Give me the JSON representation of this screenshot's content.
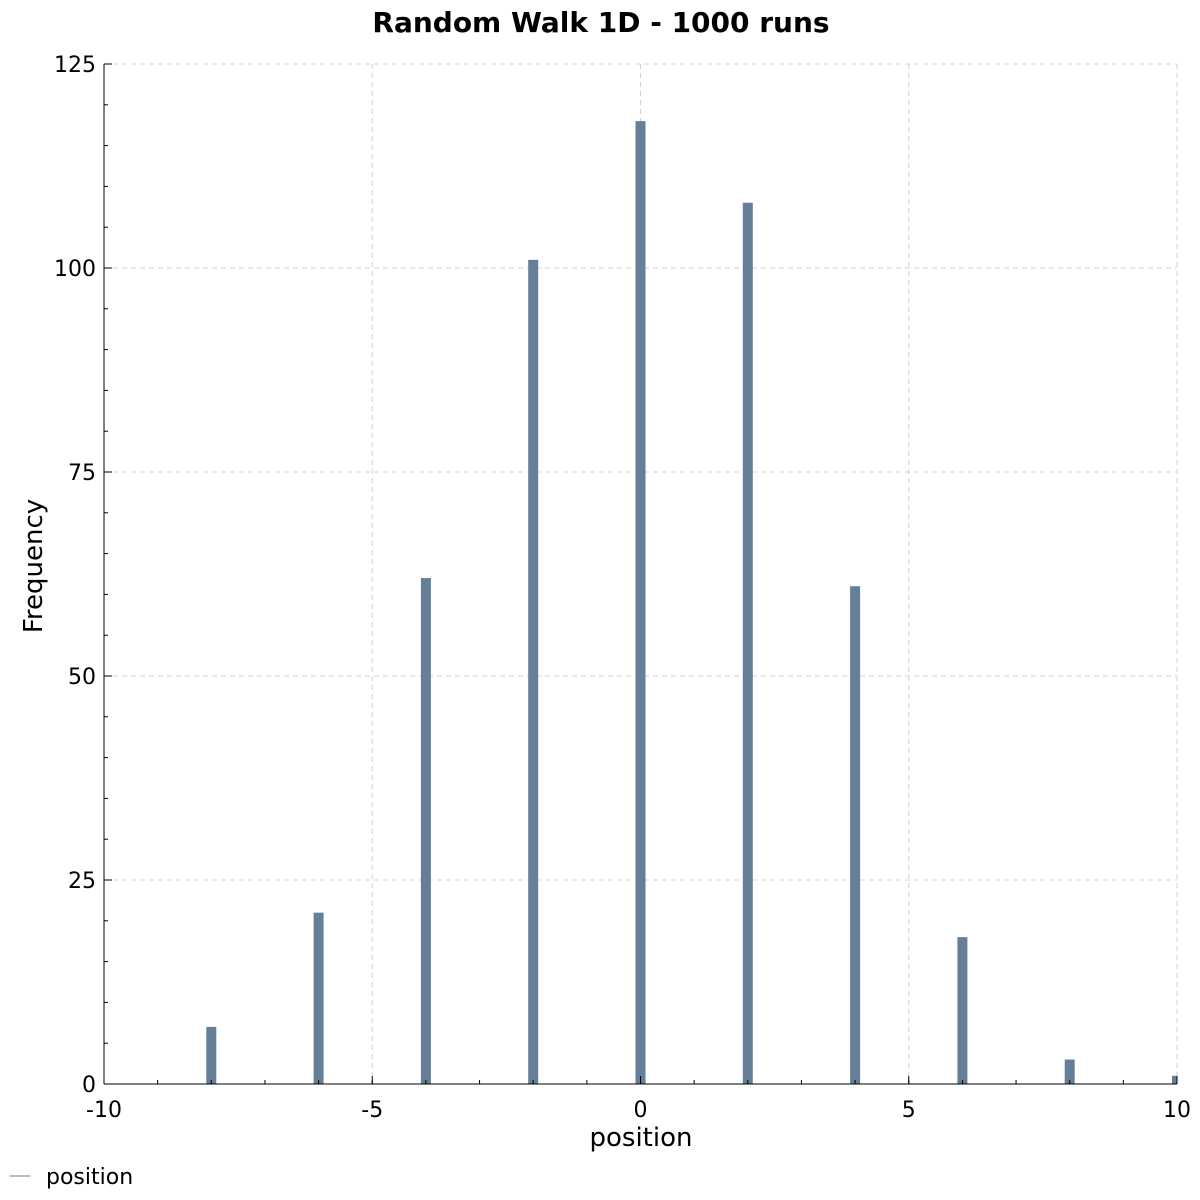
{
  "chart_data": {
    "type": "bar",
    "title": "Random Walk 1D - 1000 runs",
    "xlabel": "position",
    "ylabel": "Frequency",
    "xlim": [
      -10,
      10
    ],
    "ylim": [
      0,
      125
    ],
    "x_ticks": [
      "-10",
      "-5",
      "0",
      "5",
      "10"
    ],
    "x_tick_values": [
      -10,
      -5,
      0,
      5,
      10
    ],
    "y_ticks": [
      "0",
      "25",
      "50",
      "75",
      "100",
      "125"
    ],
    "y_tick_values": [
      0,
      25,
      50,
      75,
      100,
      125
    ],
    "grid": true,
    "legend_position": "bottom-left",
    "series": [
      {
        "name": "position",
        "color": "#667f99",
        "x": [
          -8,
          -6,
          -4,
          -2,
          0,
          2,
          4,
          6,
          8,
          10
        ],
        "values": [
          7,
          21,
          62,
          101,
          118,
          108,
          61,
          18,
          3,
          1
        ]
      }
    ]
  }
}
